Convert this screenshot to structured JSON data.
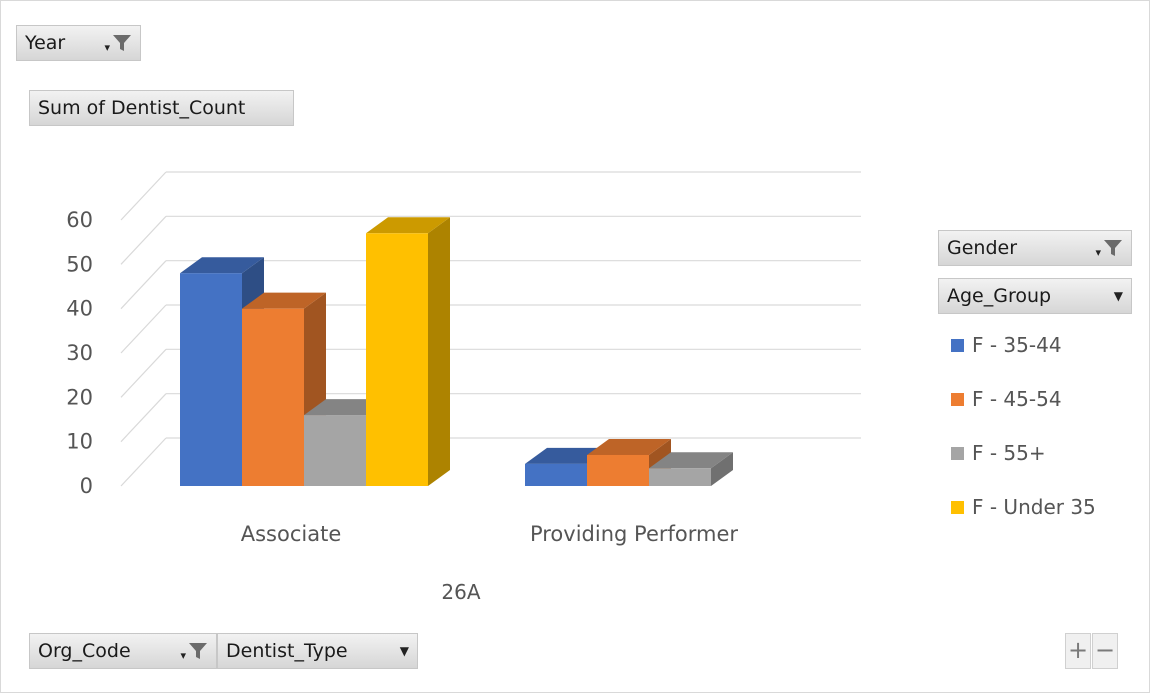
{
  "filters": {
    "year_label": "Year",
    "values_label": "Sum of Dentist_Count",
    "gender_label": "Gender",
    "age_group_label": "Age_Group",
    "org_code_label": "Org_Code",
    "dentist_type_label": "Dentist_Type"
  },
  "controls": {
    "plus_label": "+",
    "minus_label": "−"
  },
  "chart_data": {
    "type": "bar",
    "three_d": true,
    "title": "",
    "xlabel": "26A",
    "ylabel": "",
    "categories": [
      "Associate",
      "Providing Performer"
    ],
    "ylim": [
      0,
      60
    ],
    "yticks": [
      0,
      10,
      20,
      30,
      40,
      50,
      60
    ],
    "grid": true,
    "legend_position": "right",
    "series": [
      {
        "name": "F - 35-44",
        "color": "#4472c4",
        "values": [
          48,
          5
        ]
      },
      {
        "name": "F - 45-54",
        "color": "#ed7d31",
        "values": [
          40,
          7
        ]
      },
      {
        "name": "F - 55+",
        "color": "#a5a5a5",
        "values": [
          16,
          4
        ]
      },
      {
        "name": "F - Under 35",
        "color": "#ffc000",
        "values": [
          57,
          null
        ]
      }
    ]
  }
}
